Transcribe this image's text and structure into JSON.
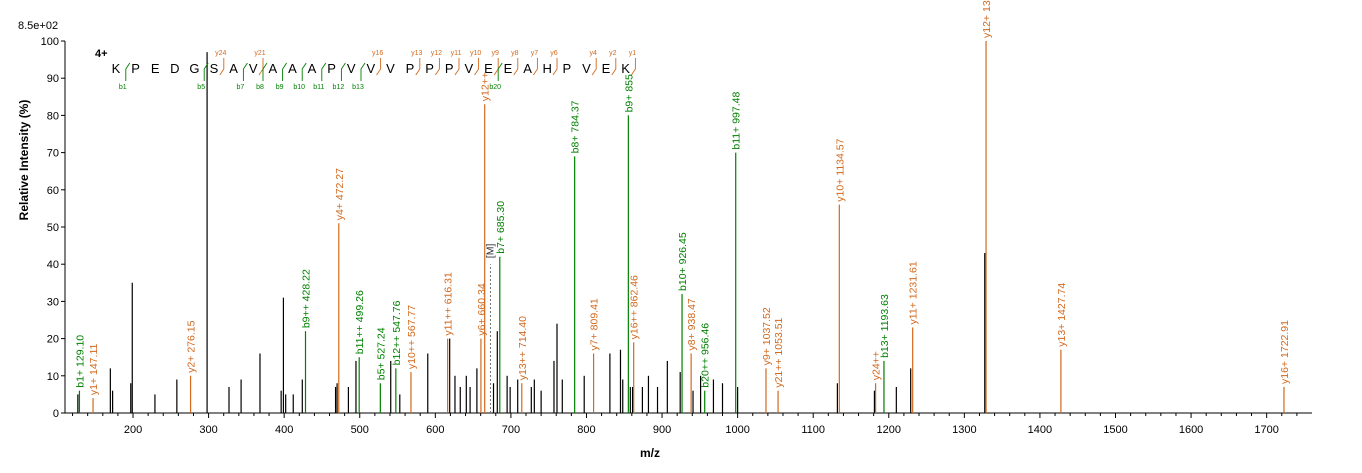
{
  "chart_data": {
    "type": "bar",
    "subtype": "mass-spectrum",
    "max_intensity_label": "8.5e+02",
    "xlabel": "m/z",
    "ylabel": "Relative   Intensity (%)",
    "xlim": [
      110,
      1760
    ],
    "ylim": [
      0,
      100
    ],
    "x_ticks": [
      200,
      300,
      400,
      500,
      600,
      700,
      800,
      900,
      1000,
      1100,
      1200,
      1300,
      1400,
      1500,
      1600,
      1700
    ],
    "y_ticks": [
      0,
      10,
      20,
      30,
      40,
      50,
      60,
      70,
      80,
      90,
      100
    ],
    "colors": {
      "b_ion": "#008000",
      "y_ion": "#d2691e",
      "unassigned": "#000000",
      "precursor": "#2020c0"
    },
    "sequence": {
      "charge_label": "4+",
      "residues": [
        "K",
        "P",
        "E",
        "D",
        "G",
        "S",
        "A",
        "V",
        "A",
        "A",
        "A",
        "P",
        "V",
        "V",
        "V",
        "P",
        "P",
        "P",
        "V",
        "E",
        "E",
        "A",
        "H",
        "P",
        "V",
        "E",
        "K"
      ],
      "y_marks": [
        {
          "after": 6,
          "label": "y24"
        },
        {
          "after": 8,
          "label": "y21"
        },
        {
          "after": 14,
          "label": "y16"
        },
        {
          "after": 16,
          "label": "y13"
        },
        {
          "after": 17,
          "label": "y12"
        },
        {
          "after": 18,
          "label": "y11"
        },
        {
          "after": 19,
          "label": "y10"
        },
        {
          "after": 20,
          "label": "y9"
        },
        {
          "after": 21,
          "label": "y8"
        },
        {
          "after": 22,
          "label": "y7"
        },
        {
          "after": 23,
          "label": "y6"
        },
        {
          "after": 25,
          "label": "y4"
        },
        {
          "after": 26,
          "label": "y2"
        },
        {
          "after": 27,
          "label": "y1"
        }
      ],
      "b_marks": [
        {
          "after": 1,
          "label": "b1"
        },
        {
          "after": 5,
          "label": "b5"
        },
        {
          "after": 7,
          "label": "b7"
        },
        {
          "after": 8,
          "label": "b8"
        },
        {
          "after": 9,
          "label": "b9"
        },
        {
          "after": 10,
          "label": "b10"
        },
        {
          "after": 11,
          "label": "b11"
        },
        {
          "after": 12,
          "label": "b12"
        },
        {
          "after": 13,
          "label": "b13"
        },
        {
          "after": 20,
          "label": "b20"
        }
      ]
    },
    "labeled_peaks": [
      {
        "mz": 129.1,
        "intensity": 6,
        "label": "b1+ 129.10",
        "ion": "b"
      },
      {
        "mz": 147.11,
        "intensity": 4,
        "label": "y1+ 147.11",
        "ion": "y"
      },
      {
        "mz": 276.15,
        "intensity": 10,
        "label": "y2+ 276.15",
        "ion": "y"
      },
      {
        "mz": 428.22,
        "intensity": 22,
        "label": "b9++ 428.22",
        "ion": "b"
      },
      {
        "mz": 472.27,
        "intensity": 51,
        "label": "y4+ 472.27",
        "ion": "y"
      },
      {
        "mz": 499.26,
        "intensity": 15,
        "label": "b11++ 499.26",
        "ion": "b"
      },
      {
        "mz": 527.24,
        "intensity": 8,
        "label": "b5+ 527.24",
        "ion": "b"
      },
      {
        "mz": 547.76,
        "intensity": 12,
        "label": "b12++ 547.76",
        "ion": "b"
      },
      {
        "mz": 567.77,
        "intensity": 11,
        "label": "y10++ 567.77",
        "ion": "y"
      },
      {
        "mz": 616.31,
        "intensity": 20,
        "label": "y11++ 616.31",
        "ion": "y"
      },
      {
        "mz": 660.34,
        "intensity": 20,
        "label": "y6+ 660.34",
        "ion": "y"
      },
      {
        "mz": 665.34,
        "intensity": 83,
        "label": "y12++",
        "ion": "y"
      },
      {
        "mz": 685.3,
        "intensity": 42,
        "label": "b7+ 685.30",
        "ion": "b"
      },
      {
        "mz": 714.4,
        "intensity": 8,
        "label": "y13++ 714.40",
        "ion": "y"
      },
      {
        "mz": 784.37,
        "intensity": 69,
        "label": "b8+ 784.37",
        "ion": "b"
      },
      {
        "mz": 809.41,
        "intensity": 16,
        "label": "y7+ 809.41",
        "ion": "y"
      },
      {
        "mz": 855.42,
        "intensity": 80,
        "label": "b9+ 855",
        "ion": "b"
      },
      {
        "mz": 862.46,
        "intensity": 19,
        "label": "y16++ 862.46",
        "ion": "y"
      },
      {
        "mz": 926.45,
        "intensity": 32,
        "label": "b10+ 926.45",
        "ion": "b"
      },
      {
        "mz": 938.47,
        "intensity": 16,
        "label": "y8+ 938.47",
        "ion": "y"
      },
      {
        "mz": 956.46,
        "intensity": 6,
        "label": "b20++ 956.46",
        "ion": "b"
      },
      {
        "mz": 997.48,
        "intensity": 70,
        "label": "b11+ 997.48",
        "ion": "b"
      },
      {
        "mz": 1037.52,
        "intensity": 12,
        "label": "y9+ 1037.52",
        "ion": "y"
      },
      {
        "mz": 1053.51,
        "intensity": 6,
        "label": "y21++ 1053.51",
        "ion": "y"
      },
      {
        "mz": 1134.57,
        "intensity": 56,
        "label": "y10+ 1134.57",
        "ion": "y"
      },
      {
        "mz": 1182.57,
        "intensity": 8,
        "label": "y24++",
        "ion": "y"
      },
      {
        "mz": 1193.63,
        "intensity": 14,
        "label": "b13+ 1193.63",
        "ion": "b"
      },
      {
        "mz": 1231.61,
        "intensity": 23,
        "label": "y11+ 1231.61",
        "ion": "y"
      },
      {
        "mz": 1328.69,
        "intensity": 100,
        "label": "y12+ 1328.69",
        "ion": "y"
      },
      {
        "mz": 1427.74,
        "intensity": 17,
        "label": "y13+ 1427.74",
        "ion": "y"
      },
      {
        "mz": 1722.91,
        "intensity": 7,
        "label": "y16+ 1722.91",
        "ion": "y"
      }
    ],
    "unlabeled_peaks": [
      {
        "mz": 127,
        "intensity": 5
      },
      {
        "mz": 170,
        "intensity": 12
      },
      {
        "mz": 173,
        "intensity": 6
      },
      {
        "mz": 197,
        "intensity": 8
      },
      {
        "mz": 199,
        "intensity": 35
      },
      {
        "mz": 229,
        "intensity": 5
      },
      {
        "mz": 258,
        "intensity": 9
      },
      {
        "mz": 298,
        "intensity": 97
      },
      {
        "mz": 327,
        "intensity": 7
      },
      {
        "mz": 343,
        "intensity": 9
      },
      {
        "mz": 368,
        "intensity": 16
      },
      {
        "mz": 396,
        "intensity": 6
      },
      {
        "mz": 399,
        "intensity": 31
      },
      {
        "mz": 402,
        "intensity": 5
      },
      {
        "mz": 412,
        "intensity": 5
      },
      {
        "mz": 424,
        "intensity": 9
      },
      {
        "mz": 468,
        "intensity": 7
      },
      {
        "mz": 470,
        "intensity": 8
      },
      {
        "mz": 485,
        "intensity": 7
      },
      {
        "mz": 495,
        "intensity": 14
      },
      {
        "mz": 541,
        "intensity": 14
      },
      {
        "mz": 553,
        "intensity": 5
      },
      {
        "mz": 590,
        "intensity": 16
      },
      {
        "mz": 619,
        "intensity": 20
      },
      {
        "mz": 626,
        "intensity": 10
      },
      {
        "mz": 633,
        "intensity": 7
      },
      {
        "mz": 641,
        "intensity": 10
      },
      {
        "mz": 646,
        "intensity": 7
      },
      {
        "mz": 655,
        "intensity": 12
      },
      {
        "mz": 677,
        "intensity": 8
      },
      {
        "mz": 682,
        "intensity": 22
      },
      {
        "mz": 695,
        "intensity": 10
      },
      {
        "mz": 699,
        "intensity": 7
      },
      {
        "mz": 709,
        "intensity": 9
      },
      {
        "mz": 727,
        "intensity": 7
      },
      {
        "mz": 731,
        "intensity": 9
      },
      {
        "mz": 740,
        "intensity": 6
      },
      {
        "mz": 757,
        "intensity": 14
      },
      {
        "mz": 761,
        "intensity": 24
      },
      {
        "mz": 768,
        "intensity": 9
      },
      {
        "mz": 797,
        "intensity": 10
      },
      {
        "mz": 831,
        "intensity": 16
      },
      {
        "mz": 845,
        "intensity": 17
      },
      {
        "mz": 848,
        "intensity": 9
      },
      {
        "mz": 858,
        "intensity": 7
      },
      {
        "mz": 861,
        "intensity": 7
      },
      {
        "mz": 874,
        "intensity": 7
      },
      {
        "mz": 882,
        "intensity": 10
      },
      {
        "mz": 894,
        "intensity": 7
      },
      {
        "mz": 907,
        "intensity": 14
      },
      {
        "mz": 924,
        "intensity": 11
      },
      {
        "mz": 941,
        "intensity": 6
      },
      {
        "mz": 951,
        "intensity": 10
      },
      {
        "mz": 968,
        "intensity": 9
      },
      {
        "mz": 980,
        "intensity": 8
      },
      {
        "mz": 1000,
        "intensity": 7
      },
      {
        "mz": 1132,
        "intensity": 8
      },
      {
        "mz": 1181,
        "intensity": 6
      },
      {
        "mz": 1210,
        "intensity": 7
      },
      {
        "mz": 1229,
        "intensity": 12
      },
      {
        "mz": 1327,
        "intensity": 43
      }
    ],
    "precursor_marker": {
      "mz": 673,
      "label": "[M]"
    }
  }
}
